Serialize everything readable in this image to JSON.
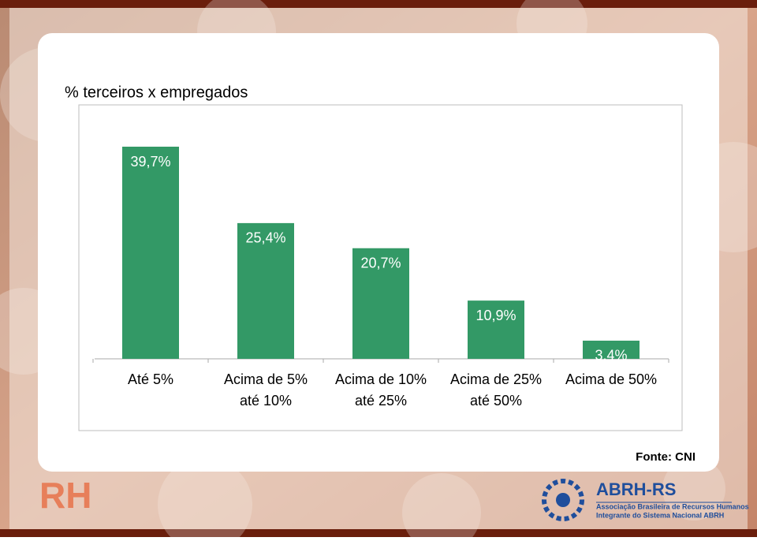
{
  "chart_data": {
    "type": "bar",
    "title": "% terceiros x empregados",
    "categories": [
      [
        "Até 5%"
      ],
      [
        "Acima de 5%",
        "até 10%"
      ],
      [
        "Acima de 10%",
        "até 25%"
      ],
      [
        "Acima de 25%",
        "até 50%"
      ],
      [
        "Acima de 50%"
      ]
    ],
    "values": [
      39.7,
      25.4,
      20.7,
      10.9,
      3.4
    ],
    "value_labels": [
      "39,7%",
      "25,4%",
      "20,7%",
      "10,9%",
      "3,4%"
    ],
    "color": "#339966",
    "source": "Fonte: CNI"
  },
  "footer": {
    "left_logo": "RH",
    "right_logo": "ABRH-RS",
    "right_line1": "Associação Brasileira de Recursos Humanos",
    "right_line2": "Integrante do Sistema Nacional ABRH"
  }
}
